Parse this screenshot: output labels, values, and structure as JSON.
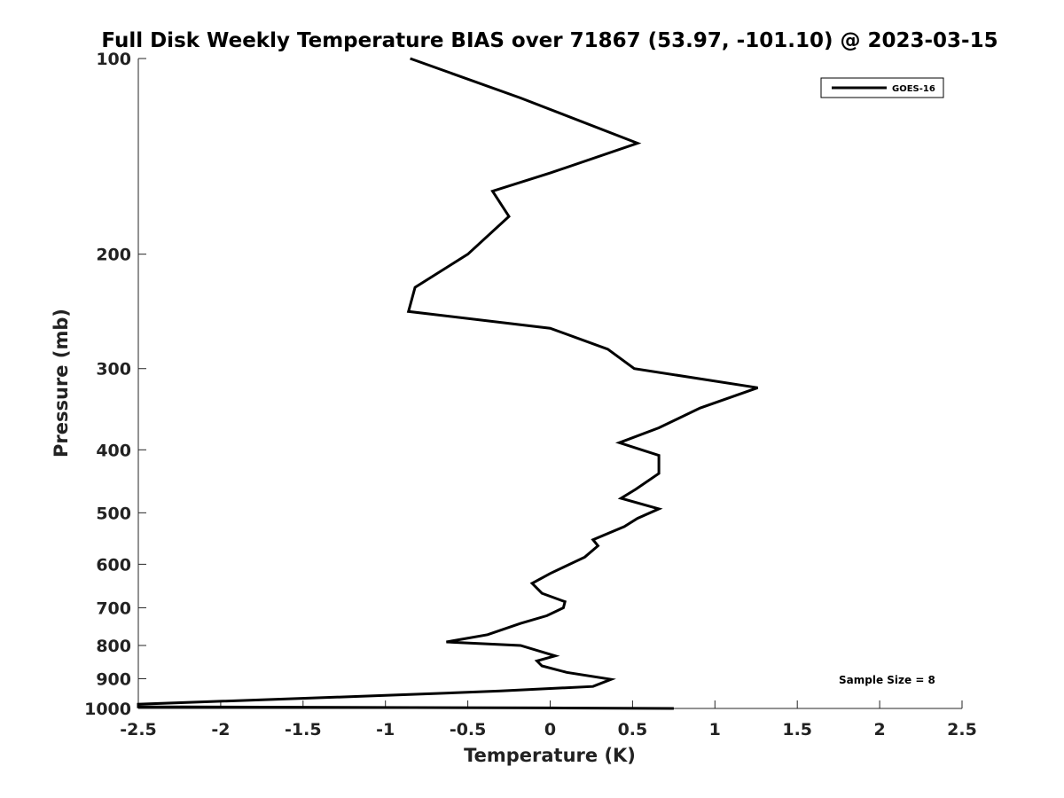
{
  "chart_data": {
    "type": "line",
    "title": "Full Disk Weekly Temperature BIAS over 71867 (53.97, -101.10) @ 2023-03-15",
    "xlabel": "Temperature (K)",
    "ylabel": "Pressure (mb)",
    "xlim": [
      -2.5,
      2.5
    ],
    "ylim": [
      100,
      1000
    ],
    "yscale": "log",
    "yreversed": true,
    "x_ticks": [
      -2.5,
      -2,
      -1.5,
      -1,
      -0.5,
      0,
      0.5,
      1,
      1.5,
      2,
      2.5
    ],
    "x_tick_labels": [
      "-2.5",
      "-2",
      "-1.5",
      "-1",
      "-0.5",
      "0",
      "0.5",
      "1",
      "1.5",
      "2",
      "2.5"
    ],
    "y_ticks": [
      100,
      200,
      300,
      400,
      500,
      600,
      700,
      800,
      900,
      1000
    ],
    "y_tick_labels": [
      "100",
      "200",
      "300",
      "400",
      "500",
      "600",
      "700",
      "800",
      "900",
      "1000"
    ],
    "grid": false,
    "legend_position": "top-right",
    "annotation": "Sample Size = 8",
    "series": [
      {
        "name": "GOES-16",
        "color": "#000000",
        "points": [
          [
            -0.85,
            100
          ],
          [
            -0.18,
            115
          ],
          [
            0.53,
            135
          ],
          [
            0.0,
            150
          ],
          [
            -0.35,
            160
          ],
          [
            -0.25,
            175
          ],
          [
            -0.5,
            200
          ],
          [
            -0.82,
            225
          ],
          [
            -0.86,
            245
          ],
          [
            0.0,
            260
          ],
          [
            0.35,
            280
          ],
          [
            0.51,
            300
          ],
          [
            1.26,
            321
          ],
          [
            0.91,
            345
          ],
          [
            0.66,
            370
          ],
          [
            0.42,
            390
          ],
          [
            0.66,
            408
          ],
          [
            0.66,
            435
          ],
          [
            0.52,
            460
          ],
          [
            0.43,
            475
          ],
          [
            0.66,
            493
          ],
          [
            0.53,
            510
          ],
          [
            0.45,
            525
          ],
          [
            0.26,
            550
          ],
          [
            0.29,
            562
          ],
          [
            0.21,
            585
          ],
          [
            0.0,
            620
          ],
          [
            -0.11,
            642
          ],
          [
            -0.05,
            665
          ],
          [
            0.09,
            685
          ],
          [
            0.08,
            700
          ],
          [
            -0.02,
            720
          ],
          [
            -0.18,
            740
          ],
          [
            -0.38,
            770
          ],
          [
            -0.63,
            790
          ],
          [
            -0.18,
            800
          ],
          [
            0.03,
            830
          ],
          [
            -0.08,
            845
          ],
          [
            -0.05,
            860
          ],
          [
            0.1,
            880
          ],
          [
            0.37,
            902
          ],
          [
            0.26,
            925
          ],
          [
            -0.3,
            940
          ],
          [
            -1.0,
            955
          ],
          [
            -2.5,
            985
          ],
          [
            -2.5,
            994
          ],
          [
            0.0,
            998
          ],
          [
            0.75,
            1000
          ]
        ]
      }
    ]
  }
}
